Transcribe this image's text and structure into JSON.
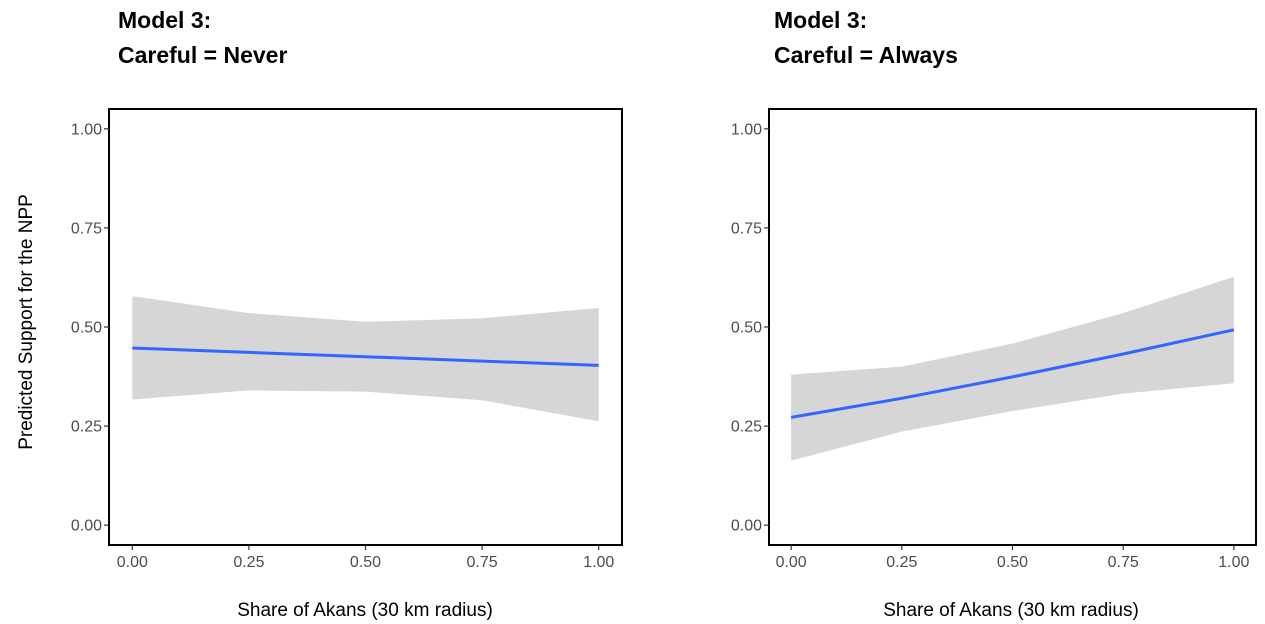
{
  "chart_data": [
    {
      "type": "line",
      "title": [
        "Model 3:",
        "Careful = Never"
      ],
      "xlabel": "Share of Akans (30 km radius)",
      "ylabel": "Predicted Support for the NPP",
      "xlim": [
        -0.05,
        1.05
      ],
      "ylim": [
        -0.05,
        1.05
      ],
      "x_ticks": [
        "0.00",
        "0.25",
        "0.50",
        "0.75",
        "1.00"
      ],
      "y_ticks": [
        "0.00",
        "0.25",
        "0.50",
        "0.75",
        "1.00"
      ],
      "grid": false,
      "colors": {
        "line": "#3366ff",
        "ribbon": "#d6d6d6"
      },
      "series": [
        {
          "x": [
            0,
            0.25,
            0.5,
            0.75,
            1
          ],
          "values": [
            0.447,
            0.436,
            0.425,
            0.414,
            0.403
          ],
          "lower": [
            0.317,
            0.34,
            0.337,
            0.315,
            0.262
          ],
          "upper": [
            0.578,
            0.535,
            0.513,
            0.522,
            0.548
          ]
        }
      ]
    },
    {
      "type": "line",
      "title": [
        "Model 3:",
        "Careful = Always"
      ],
      "xlabel": "Share of Akans (30 km radius)",
      "ylabel": "",
      "xlim": [
        -0.05,
        1.05
      ],
      "ylim": [
        -0.05,
        1.05
      ],
      "x_ticks": [
        "0.00",
        "0.25",
        "0.50",
        "0.75",
        "1.00"
      ],
      "y_ticks": [
        "0.00",
        "0.25",
        "0.50",
        "0.75",
        "1.00"
      ],
      "grid": false,
      "colors": {
        "line": "#3366ff",
        "ribbon": "#d6d6d6"
      },
      "series": [
        {
          "x": [
            0,
            0.25,
            0.5,
            0.75,
            1
          ],
          "values": [
            0.272,
            0.32,
            0.374,
            0.432,
            0.493
          ],
          "lower": [
            0.163,
            0.236,
            0.288,
            0.332,
            0.358
          ],
          "upper": [
            0.38,
            0.4,
            0.458,
            0.535,
            0.627
          ]
        }
      ]
    }
  ]
}
